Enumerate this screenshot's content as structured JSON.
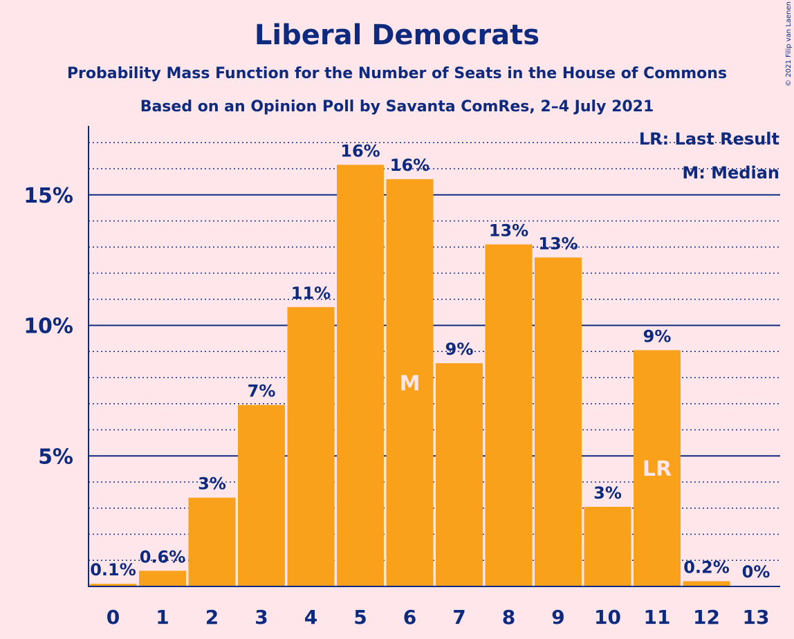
{
  "chart_data": {
    "type": "bar",
    "title": "Liberal Democrats",
    "subtitle": "Probability Mass Function for the Number of Seats in the House of Commons",
    "subtitle2": "Based on an Opinion Poll by Savanta ComRes, 2–4 July 2021",
    "copyright": "© 2021 Filip van Laenen",
    "categories": [
      "0",
      "1",
      "2",
      "3",
      "4",
      "5",
      "6",
      "7",
      "8",
      "9",
      "10",
      "11",
      "12",
      "13"
    ],
    "values": [
      0.1,
      0.6,
      3.4,
      6.95,
      10.7,
      16.15,
      15.6,
      8.55,
      13.1,
      12.6,
      3.05,
      9.05,
      0.2,
      0.0
    ],
    "value_labels": [
      "0.1%",
      "0.6%",
      "3%",
      "7%",
      "11%",
      "16%",
      "16%",
      "9%",
      "13%",
      "13%",
      "3%",
      "9%",
      "0.2%",
      "0%"
    ],
    "ylim": [
      0,
      17.6
    ],
    "yticks": [
      5,
      10,
      15
    ],
    "ytick_labels": [
      "5%",
      "10%",
      "15%"
    ],
    "minor_grid_step": 1,
    "grid": true,
    "median_index": 6,
    "median_marker": "M",
    "last_result_index": 11,
    "last_result_marker": "LR",
    "legend": {
      "placement": "top-right",
      "last_result": "LR: Last Result",
      "median": "M: Median"
    },
    "colors": {
      "bar": "#F9A11B",
      "text": "#0D2A7E",
      "axis": "#0D2A7E",
      "background": "#FFE6EA"
    }
  }
}
